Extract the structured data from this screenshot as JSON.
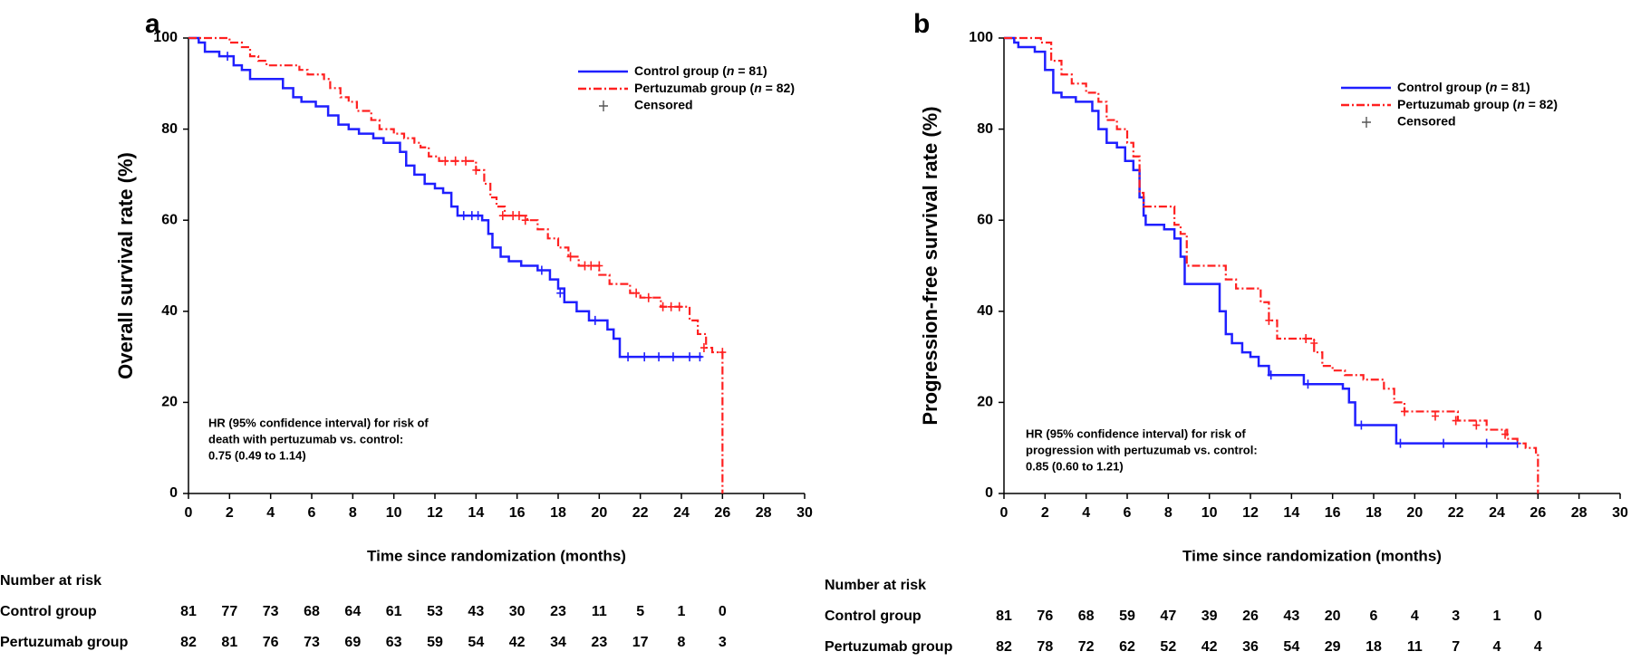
{
  "chart_data": [
    {
      "type": "line",
      "panel_label": "a",
      "ylabel": "Overall survival rate (%)",
      "xlabel": "Time since randomization (months)",
      "xlim": [
        0,
        30
      ],
      "ylim": [
        0,
        100
      ],
      "xticks": [
        0,
        2,
        4,
        6,
        8,
        10,
        12,
        14,
        16,
        18,
        20,
        22,
        24,
        26,
        28,
        30
      ],
      "yticks": [
        0,
        20,
        40,
        60,
        80,
        100
      ],
      "grid": false,
      "legend": {
        "placement": "top-right",
        "entries": [
          {
            "prefix": "Control group (",
            "n_symbol": "n",
            "suffix": " = 81)",
            "style": "solid",
            "color": "#1f1fff"
          },
          {
            "prefix": "Pertuzumab group (",
            "n_symbol": "n",
            "suffix": " = 82)",
            "style": "dashdot",
            "color": "#ff2020"
          }
        ],
        "censored_label": "Censored"
      },
      "annotation": [
        "HR (95% confidence interval) for risk of",
        "death with pertuzumab vs. control:",
        "0.75 (0.49 to 1.14)"
      ],
      "series": [
        {
          "key": "control",
          "color": "#1f1fff",
          "style": "solid",
          "steps": [
            [
              0,
              100
            ],
            [
              0.5,
              99
            ],
            [
              0.8,
              97
            ],
            [
              1.5,
              96
            ],
            [
              2.2,
              94
            ],
            [
              2.6,
              93
            ],
            [
              3,
              91
            ],
            [
              4.6,
              89
            ],
            [
              5.1,
              87
            ],
            [
              5.5,
              86
            ],
            [
              6.2,
              85
            ],
            [
              6.8,
              83
            ],
            [
              7.3,
              81
            ],
            [
              7.8,
              80
            ],
            [
              8.3,
              79
            ],
            [
              9,
              78
            ],
            [
              9.5,
              77
            ],
            [
              10.3,
              75
            ],
            [
              10.6,
              72
            ],
            [
              11,
              70
            ],
            [
              11.5,
              68
            ],
            [
              12,
              67
            ],
            [
              12.4,
              66
            ],
            [
              12.8,
              63
            ],
            [
              13.1,
              61
            ],
            [
              14.3,
              60
            ],
            [
              14.6,
              57
            ],
            [
              14.8,
              54
            ],
            [
              15.2,
              52
            ],
            [
              15.6,
              51
            ],
            [
              16.2,
              50
            ],
            [
              17,
              49
            ],
            [
              17.6,
              47
            ],
            [
              18,
              45
            ],
            [
              18.3,
              42
            ],
            [
              18.9,
              40
            ],
            [
              19.5,
              38
            ],
            [
              20.4,
              36
            ],
            [
              20.7,
              34
            ],
            [
              21,
              30
            ],
            [
              25,
              30
            ]
          ],
          "censored": [
            [
              1.9,
              96
            ],
            [
              13.4,
              61
            ],
            [
              13.8,
              61
            ],
            [
              14.1,
              61
            ],
            [
              17.2,
              49
            ],
            [
              18.1,
              44
            ],
            [
              19.8,
              38
            ],
            [
              21.4,
              30
            ],
            [
              22.2,
              30
            ],
            [
              22.9,
              30
            ],
            [
              23.6,
              30
            ],
            [
              24.4,
              30
            ],
            [
              24.9,
              30
            ]
          ]
        },
        {
          "key": "pertuzumab",
          "color": "#ff2020",
          "style": "dashdot",
          "steps": [
            [
              0,
              100
            ],
            [
              2,
              99
            ],
            [
              2.6,
              98
            ],
            [
              3,
              96
            ],
            [
              3.4,
              95
            ],
            [
              3.8,
              94
            ],
            [
              5.4,
              93
            ],
            [
              5.8,
              92
            ],
            [
              6.6,
              91
            ],
            [
              6.9,
              89
            ],
            [
              7.4,
              87
            ],
            [
              7.8,
              86
            ],
            [
              8.2,
              84
            ],
            [
              8.9,
              82
            ],
            [
              9.3,
              80
            ],
            [
              10,
              79
            ],
            [
              10.5,
              78
            ],
            [
              11,
              77
            ],
            [
              11.3,
              76
            ],
            [
              11.7,
              74
            ],
            [
              12.2,
              73
            ],
            [
              14,
              71
            ],
            [
              14.4,
              68
            ],
            [
              14.7,
              65
            ],
            [
              15,
              63
            ],
            [
              15.4,
              61
            ],
            [
              16.5,
              60
            ],
            [
              17,
              58
            ],
            [
              17.5,
              56
            ],
            [
              18,
              54
            ],
            [
              18.5,
              52
            ],
            [
              19,
              50
            ],
            [
              20,
              48
            ],
            [
              20.5,
              46
            ],
            [
              21.5,
              44
            ],
            [
              22,
              43
            ],
            [
              23,
              41
            ],
            [
              24,
              41
            ],
            [
              24.4,
              38
            ],
            [
              24.8,
              35
            ],
            [
              25.2,
              32
            ],
            [
              25.5,
              31
            ],
            [
              26,
              31
            ],
            [
              26,
              0
            ]
          ],
          "censored": [
            [
              12.5,
              73
            ],
            [
              13,
              73
            ],
            [
              13.5,
              73
            ],
            [
              14,
              71
            ],
            [
              15.3,
              61
            ],
            [
              15.8,
              61
            ],
            [
              16.1,
              61
            ],
            [
              16.4,
              60
            ],
            [
              18.6,
              52
            ],
            [
              19.3,
              50
            ],
            [
              19.6,
              50
            ],
            [
              20,
              50
            ],
            [
              21.8,
              44
            ],
            [
              22.4,
              43
            ],
            [
              23.1,
              41
            ],
            [
              23.5,
              41
            ],
            [
              23.9,
              41
            ],
            [
              25.1,
              32
            ],
            [
              26,
              31
            ]
          ]
        }
      ],
      "risk_table": {
        "title": "Number at risk",
        "rows": [
          {
            "label": "Control group",
            "values": [
              "81",
              "77",
              "73",
              "68",
              "64",
              "61",
              "53",
              "43",
              "30",
              "23",
              "11",
              "5",
              "1",
              "0"
            ]
          },
          {
            "label": "Pertuzumab group",
            "values": [
              "82",
              "81",
              "76",
              "73",
              "69",
              "63",
              "59",
              "54",
              "42",
              "34",
              "23",
              "17",
              "8",
              "3"
            ]
          }
        ]
      }
    },
    {
      "type": "line",
      "panel_label": "b",
      "ylabel": "Progression-free survival rate (%)",
      "xlabel": "Time since randomization (months)",
      "xlim": [
        0,
        30
      ],
      "ylim": [
        0,
        100
      ],
      "xticks": [
        0,
        2,
        4,
        6,
        8,
        10,
        12,
        14,
        16,
        18,
        20,
        22,
        24,
        26,
        28,
        30
      ],
      "yticks": [
        0,
        20,
        40,
        60,
        80,
        100
      ],
      "grid": false,
      "legend": {
        "placement": "top-right",
        "entries": [
          {
            "prefix": "Control group (",
            "n_symbol": "n",
            "suffix": " = 81)",
            "style": "solid",
            "color": "#1f1fff"
          },
          {
            "prefix": "Pertuzumab group (",
            "n_symbol": "n",
            "suffix": " = 82)",
            "style": "dashdot",
            "color": "#ff2020"
          }
        ],
        "censored_label": "Censored"
      },
      "annotation": [
        "HR (95% confidence interval) for risk of",
        "progression with pertuzumab vs. control:",
        "0.85 (0.60 to 1.21)"
      ],
      "series": [
        {
          "key": "control",
          "color": "#1f1fff",
          "style": "solid",
          "steps": [
            [
              0,
              100
            ],
            [
              0.5,
              99
            ],
            [
              0.7,
              98
            ],
            [
              1.5,
              97
            ],
            [
              2,
              93
            ],
            [
              2.4,
              88
            ],
            [
              2.8,
              87
            ],
            [
              3.5,
              86
            ],
            [
              4.3,
              84
            ],
            [
              4.6,
              80
            ],
            [
              5,
              77
            ],
            [
              5.5,
              76
            ],
            [
              5.9,
              73
            ],
            [
              6.3,
              71
            ],
            [
              6.6,
              65
            ],
            [
              6.8,
              61
            ],
            [
              6.9,
              59
            ],
            [
              7.8,
              58
            ],
            [
              8.3,
              56
            ],
            [
              8.6,
              52
            ],
            [
              8.8,
              46
            ],
            [
              10.3,
              46
            ],
            [
              10.5,
              40
            ],
            [
              10.8,
              35
            ],
            [
              11.1,
              33
            ],
            [
              11.6,
              31
            ],
            [
              12,
              30
            ],
            [
              12.4,
              28
            ],
            [
              12.9,
              26
            ],
            [
              14.6,
              24
            ],
            [
              16.5,
              23
            ],
            [
              16.8,
              20
            ],
            [
              17.1,
              15
            ],
            [
              18,
              15
            ],
            [
              19.1,
              11
            ],
            [
              25,
              11
            ]
          ],
          "censored": [
            [
              13,
              26
            ],
            [
              14.8,
              24
            ],
            [
              17.4,
              15
            ],
            [
              19.3,
              11
            ],
            [
              21.4,
              11
            ],
            [
              23.5,
              11
            ],
            [
              25,
              11
            ]
          ]
        },
        {
          "key": "pertuzumab",
          "color": "#ff2020",
          "style": "dashdot",
          "steps": [
            [
              0,
              100
            ],
            [
              1.8,
              99
            ],
            [
              2.3,
              95
            ],
            [
              2.8,
              92
            ],
            [
              3.3,
              90
            ],
            [
              4,
              88
            ],
            [
              4.6,
              86
            ],
            [
              5,
              82
            ],
            [
              5.5,
              80
            ],
            [
              6,
              77
            ],
            [
              6.3,
              74
            ],
            [
              6.6,
              66
            ],
            [
              6.8,
              63
            ],
            [
              8.1,
              63
            ],
            [
              8.3,
              59
            ],
            [
              8.6,
              57
            ],
            [
              8.9,
              50
            ],
            [
              10.2,
              50
            ],
            [
              10.8,
              47
            ],
            [
              11.3,
              45
            ],
            [
              12.5,
              42
            ],
            [
              12.9,
              38
            ],
            [
              13.3,
              34
            ],
            [
              14.8,
              34
            ],
            [
              15.1,
              31
            ],
            [
              15.5,
              28
            ],
            [
              16,
              27
            ],
            [
              16.6,
              26
            ],
            [
              17.5,
              25
            ],
            [
              18.5,
              23
            ],
            [
              19,
              20
            ],
            [
              19.5,
              18
            ],
            [
              22.1,
              16
            ],
            [
              23.5,
              14
            ],
            [
              24.5,
              12
            ],
            [
              25,
              11
            ],
            [
              25.4,
              10
            ],
            [
              25.9,
              9
            ],
            [
              26,
              0
            ]
          ],
          "censored": [
            [
              12.9,
              38
            ],
            [
              14.7,
              34
            ],
            [
              15.1,
              33
            ],
            [
              19.5,
              18
            ],
            [
              21,
              17
            ],
            [
              22,
              16
            ],
            [
              23,
              15
            ],
            [
              24.4,
              13
            ]
          ]
        }
      ],
      "risk_table": {
        "title": "Number at risk",
        "rows": [
          {
            "label": "Control group",
            "values": [
              "81",
              "76",
              "68",
              "59",
              "47",
              "39",
              "26",
              "43",
              "20",
              "6",
              "4",
              "3",
              "1",
              "0"
            ]
          },
          {
            "label": "Pertuzumab group",
            "values": [
              "82",
              "78",
              "72",
              "62",
              "52",
              "42",
              "36",
              "54",
              "29",
              "18",
              "11",
              "7",
              "4",
              "4"
            ]
          }
        ]
      }
    }
  ]
}
